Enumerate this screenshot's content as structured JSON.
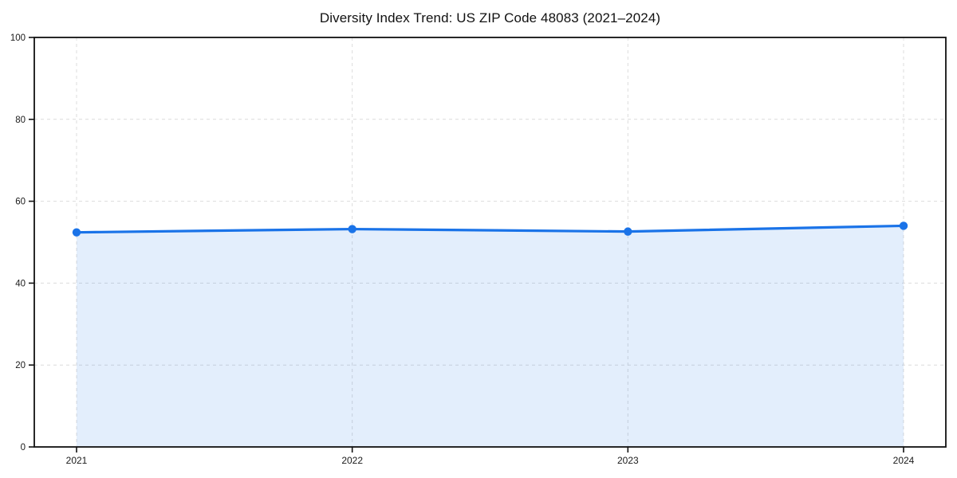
{
  "page": {
    "background": "#ffffff"
  },
  "chart_data": {
    "type": "area",
    "title": "Diversity Index Trend: US ZIP Code 48083 (2021–2024)",
    "x": [
      "2021",
      "2022",
      "2023",
      "2024"
    ],
    "series": [
      {
        "name": "Diversity Index",
        "values": [
          52.4,
          53.2,
          52.6,
          54.0
        ]
      }
    ],
    "xlabel": "",
    "ylabel": "",
    "ylim": [
      0,
      100
    ],
    "yticks": [
      0,
      20,
      40,
      60,
      80,
      100
    ],
    "grid": "dashed",
    "legend": "none",
    "marker": "circle",
    "colors": {
      "line": "#1a73e8",
      "marker": "#1a73e8",
      "fill": "#1a73e8",
      "fill_opacity": "0.12",
      "grid": "#dcdcdc",
      "axis": "#111111",
      "tick_text": "#1a1a1a",
      "title_text": "#111111",
      "background": "#ffffff"
    }
  }
}
